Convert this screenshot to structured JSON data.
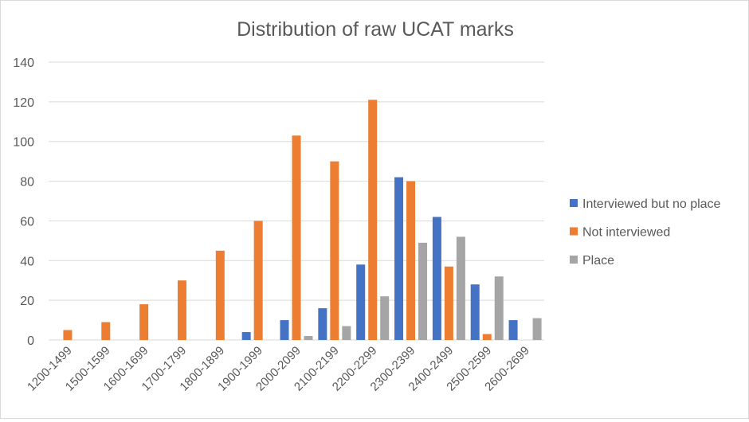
{
  "chart_data": {
    "type": "bar",
    "title": "Distribution of raw UCAT marks",
    "xlabel": "",
    "ylabel": "",
    "ylim": [
      0,
      140
    ],
    "yticks": [
      0,
      20,
      40,
      60,
      80,
      100,
      120,
      140
    ],
    "grid": true,
    "legend_position": "right",
    "categories": [
      "1200-1499",
      "1500-1599",
      "1600-1699",
      "1700-1799",
      "1800-1899",
      "1900-1999",
      "2000-2099",
      "2100-2199",
      "2200-2299",
      "2300-2399",
      "2400-2499",
      "2500-2599",
      "2600-2699"
    ],
    "series": [
      {
        "name": "Interviewed but no place",
        "color": "#4472c4",
        "values": [
          0,
          0,
          0,
          0,
          0,
          4,
          10,
          16,
          38,
          82,
          62,
          28,
          10
        ]
      },
      {
        "name": "Not interviewed",
        "color": "#ed7d31",
        "values": [
          5,
          9,
          18,
          30,
          45,
          60,
          103,
          90,
          121,
          80,
          37,
          3,
          0
        ]
      },
      {
        "name": "Place",
        "color": "#a5a5a5",
        "values": [
          0,
          0,
          0,
          0,
          0,
          0,
          2,
          7,
          22,
          49,
          52,
          32,
          11
        ]
      }
    ]
  }
}
